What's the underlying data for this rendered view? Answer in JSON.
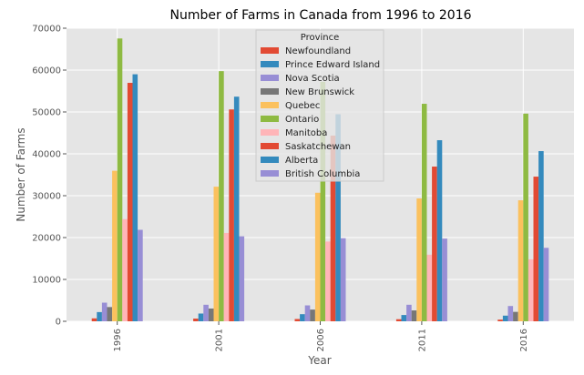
{
  "chart_data": {
    "type": "bar",
    "title": "Number of Farms in Canada from 1996 to 2016",
    "xlabel": "Year",
    "ylabel": "Number of Farms",
    "ylim": [
      0,
      70000
    ],
    "yticks": [
      "0",
      "10000",
      "20000",
      "30000",
      "40000",
      "50000",
      "60000",
      "70000"
    ],
    "categories": [
      "1996",
      "2001",
      "2006",
      "2011",
      "2016"
    ],
    "grid": true,
    "legend": {
      "title": "Province",
      "placement": "top-center"
    },
    "series": [
      {
        "name": "Newfoundland",
        "color": "#E24A33",
        "values": [
          700,
          650,
          550,
          500,
          400
        ]
      },
      {
        "name": "Prince Edward Island",
        "color": "#348ABD",
        "values": [
          2200,
          1850,
          1700,
          1500,
          1350
        ]
      },
      {
        "name": "Nova Scotia",
        "color": "#988ED5",
        "values": [
          4450,
          3950,
          3800,
          3950,
          3650
        ]
      },
      {
        "name": "New Brunswick",
        "color": "#777777",
        "values": [
          3400,
          3050,
          2800,
          2600,
          2250
        ]
      },
      {
        "name": "Quebec",
        "color": "#FBC15E",
        "values": [
          35950,
          32150,
          30700,
          29350,
          28900
        ]
      },
      {
        "name": "Ontario",
        "color": "#8EBA42",
        "values": [
          67550,
          59750,
          57200,
          51950,
          49600
        ]
      },
      {
        "name": "Manitoba",
        "color": "#FFB5B8",
        "values": [
          24400,
          21100,
          19050,
          15900,
          14800
        ]
      },
      {
        "name": "Saskatchewan",
        "color": "#E24A33",
        "values": [
          56950,
          50600,
          44350,
          36950,
          34550
        ]
      },
      {
        "name": "Alberta",
        "color": "#348ABD",
        "values": [
          59000,
          53650,
          49450,
          43250,
          40650
        ]
      },
      {
        "name": "British Columbia",
        "color": "#988ED5",
        "values": [
          21850,
          20300,
          19850,
          19750,
          17550
        ]
      }
    ]
  }
}
